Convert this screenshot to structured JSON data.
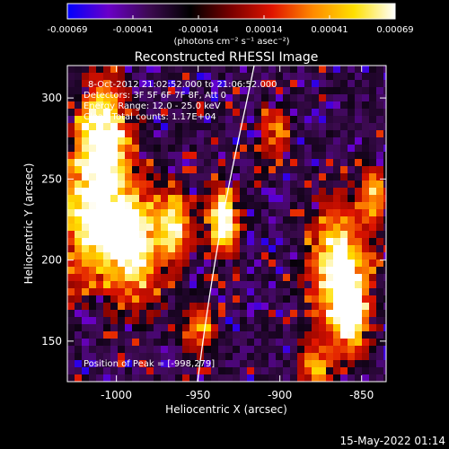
{
  "colorbar": {
    "ticks": [
      "-0.00069",
      "-0.00041",
      "-0.00014",
      "0.00014",
      "0.00041",
      "0.00069"
    ],
    "units": "(photons cm⁻² s⁻¹ asec⁻²)",
    "stops": [
      "#0000ff",
      "#6a00c8",
      "#3c0a50",
      "#000000",
      "#7a0000",
      "#e01400",
      "#ff8a00",
      "#ffe000",
      "#ffffff"
    ]
  },
  "image": {
    "title": "Reconstructed RHESSI Image",
    "info": [
      "8-Oct-2012 21:02:52.000 to 21:06:52.000",
      "Detectors: 3F 5F 6F 7F 8F, Att 0",
      "Energy Range: 12.0 - 25.0 keV",
      "Clean      Total counts: 1.17E+04"
    ],
    "peak_label": "Position of Peak = [-998,279]",
    "footer_date": "15-May-2022 01:14"
  },
  "axes": {
    "xlabel": "Heliocentric X (arcsec)",
    "ylabel": "Heliocentric Y (arcsec)",
    "xlim": [
      -1030,
      -835
    ],
    "ylim": [
      125,
      320
    ],
    "xticks": [
      -1000,
      -950,
      -900,
      -850
    ],
    "yticks": [
      150,
      200,
      250,
      300
    ]
  }
}
